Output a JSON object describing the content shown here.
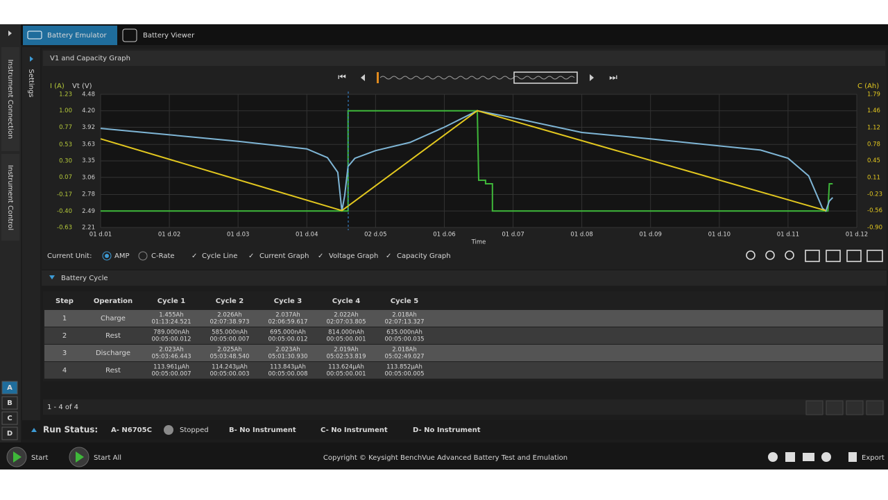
{
  "tabs": [
    "Battery Emulator",
    "Battery Viewer"
  ],
  "side_tabs": [
    "Instrument Connection",
    "Instrument Control"
  ],
  "settings_label": "Settings",
  "graph_title": "V1 and Capacity Graph",
  "chart_data": {
    "type": "line",
    "xlabel": "Time",
    "ylabel": "I (A)",
    "y3label": "Vt (V)",
    "y2label": "C (Ah)",
    "grid": true,
    "xlim": [
      1,
      12
    ],
    "xticks": [
      {
        "value": 1,
        "label": "01 d.01"
      },
      {
        "value": 2,
        "label": "01 d.02"
      },
      {
        "value": 3,
        "label": "01 d.03"
      },
      {
        "value": 4,
        "label": "01 d.04"
      },
      {
        "value": 5,
        "label": "02 d.05"
      },
      {
        "value": 6,
        "label": "01 d.06"
      },
      {
        "value": 7,
        "label": "01 d.07"
      },
      {
        "value": 8,
        "label": "01 d.08"
      },
      {
        "value": 9,
        "label": "01 d.09"
      },
      {
        "value": 10,
        "label": "01 d.10"
      },
      {
        "value": 11,
        "label": "01 d.11"
      },
      {
        "value": 12,
        "label": "01 d.12"
      }
    ],
    "ylim": [
      -0.63,
      1.23
    ],
    "yticks": [
      1.23,
      {
        "value": 1,
        "label": "1.00"
      },
      0.77,
      0.53,
      {
        "value": 0.3,
        "label": "0.30"
      },
      0.07,
      -0.17,
      {
        "value": -0.4,
        "label": "-0.40"
      },
      -0.63
    ],
    "y3lim": [
      2.21,
      4.48
    ],
    "y3ticks": [
      4.48,
      {
        "value": 4.2,
        "label": "4.20"
      },
      3.92,
      3.63,
      3.35,
      3.06,
      2.78,
      2.49,
      2.21
    ],
    "y2lim": [
      -0.9,
      1.79
    ],
    "y2ticks": [
      1.79,
      1.46,
      1.12,
      0.78,
      0.45,
      0.11,
      -0.23,
      -0.56,
      {
        "value": -0.9,
        "label": "-0.90"
      }
    ],
    "series": [
      {
        "name": "Current Graph",
        "color": "#3fb83a",
        "axis": "y",
        "x": [
          1,
          4.6,
          4.6,
          6.48,
          6.5,
          6.6,
          6.6,
          6.7,
          6.7,
          11.58,
          11.6,
          11.65
        ],
        "values": [
          -0.4,
          -0.4,
          1,
          1,
          0.03,
          0.03,
          -0.02,
          -0.02,
          -0.4,
          -0.4,
          -0.02,
          -0.02
        ]
      },
      {
        "name": "Voltage Graph",
        "color": "#7fb6d6",
        "axis": "y3",
        "x": [
          1,
          2,
          3,
          4,
          4.3,
          4.45,
          4.51,
          4.55,
          4.6,
          4.7,
          5,
          5.5,
          6,
          6.48,
          7,
          8,
          9,
          10,
          10.6,
          11,
          11.3,
          11.5,
          11.55,
          11.6,
          11.65
        ],
        "values": [
          3.9,
          3.79,
          3.68,
          3.55,
          3.4,
          3.15,
          2.49,
          2.75,
          3.25,
          3.39,
          3.52,
          3.66,
          3.92,
          4.2,
          4.08,
          3.83,
          3.72,
          3.6,
          3.53,
          3.39,
          3.09,
          2.54,
          2.49,
          2.66,
          2.72
        ]
      },
      {
        "name": "Capacity Graph",
        "color": "#e3c81f",
        "axis": "y2",
        "x": [
          1,
          4.51,
          6.48,
          11.55
        ],
        "values": [
          0.89,
          -0.56,
          1.46,
          -0.56
        ]
      }
    ]
  },
  "controls": {
    "current_unit": "Current Unit:",
    "amp": "AMP",
    "c_rate": "C-Rate",
    "cycle_line": "Cycle Line"
  },
  "cycle_title": "Battery Cycle",
  "table": {
    "header": [
      "Step",
      "Operation",
      "Cycle 1",
      "Cycle 2",
      "Cycle 3",
      "Cycle 4",
      "Cycle 5"
    ],
    "rows": [
      [
        "1",
        "Charge",
        [
          "1.455Ah",
          "01:13:24.521"
        ],
        [
          "2.026Ah",
          "02:07:38.973"
        ],
        [
          "2.037Ah",
          "02:06:59.617"
        ],
        [
          "2.022Ah",
          "02:07:03.805"
        ],
        [
          "2.018Ah",
          "02:07:13.327"
        ]
      ],
      [
        "2",
        "Rest",
        [
          "789.000nAh",
          "00:05:00.012"
        ],
        [
          "585.000nAh",
          "00:05:00.007"
        ],
        [
          "695.000nAh",
          "00:05:00.012"
        ],
        [
          "814.000nAh",
          "00:05:00.001"
        ],
        [
          "635.000nAh",
          "00:05:00.035"
        ]
      ],
      [
        "3",
        "Discharge",
        [
          "2.023Ah",
          "05:03:46.443"
        ],
        [
          "2.025Ah",
          "05:03:48.540"
        ],
        [
          "2.023Ah",
          "05:01:30.930"
        ],
        [
          "2.019Ah",
          "05:02:53.819"
        ],
        [
          "2.018Ah",
          "05:02:49.027"
        ]
      ],
      [
        "4",
        "Rest",
        [
          "113.961µAh",
          "00:05:00.007"
        ],
        [
          "114.243µAh",
          "00:05:00.003"
        ],
        [
          "113.843µAh",
          "00:05:00.008"
        ],
        [
          "113.624µAh",
          "00:05:00.001"
        ],
        [
          "113.852µAh",
          "00:05:00.005"
        ]
      ]
    ]
  },
  "pagination": "1 - 4 of 4",
  "channels": [
    "A",
    "B",
    "C",
    "D"
  ],
  "run_status": {
    "label": "Run Status:",
    "a": "A- N6705C",
    "state": "Stopped",
    "b": "B- No Instrument",
    "c": "C- No Instrument",
    "d": "D- No Instrument"
  },
  "footer": {
    "start": "Start",
    "start_all": "Start All",
    "copyright": "Copyright © Keysight BenchVue Advanced Battery Test and Emulation",
    "export": "Export"
  }
}
